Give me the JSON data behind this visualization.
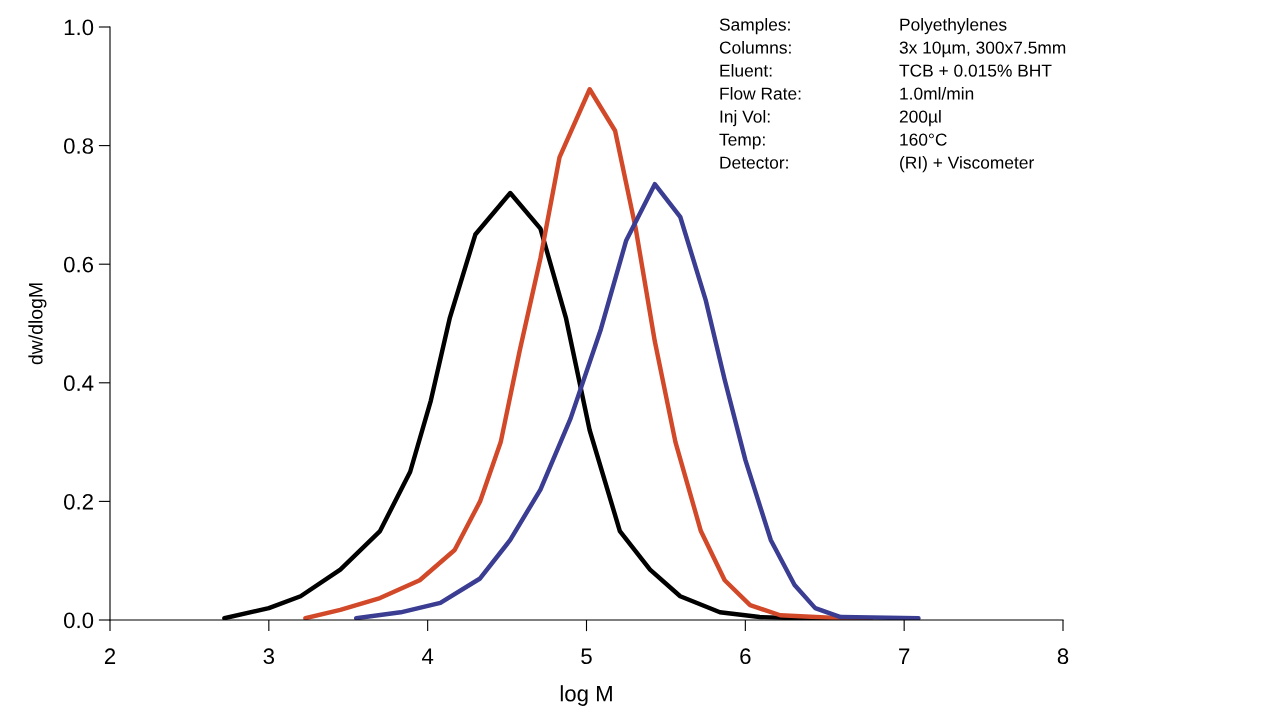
{
  "chart_data": {
    "type": "line",
    "xlabel": "log M",
    "ylabel": "dw/dlogM",
    "xlim": [
      2,
      8
    ],
    "xticks": [
      2,
      3,
      4,
      5,
      6,
      7,
      8
    ],
    "ylim": [
      0,
      1.0
    ],
    "yticks": [
      {
        "value": 0,
        "label": "0.0"
      },
      {
        "value": 0.2,
        "label": "0.2"
      },
      {
        "value": 0.4,
        "label": "0.4"
      },
      {
        "value": 0.6,
        "label": "0.6"
      },
      {
        "value": 0.8,
        "label": "0.8"
      },
      {
        "value": 1.0,
        "label": "1.0"
      }
    ],
    "grid": false,
    "legend": false,
    "line_style": "solid",
    "series": [
      {
        "color": "#000000",
        "x": [
          2.72,
          3.0,
          3.2,
          3.45,
          3.7,
          3.89,
          4.02,
          4.14,
          4.3,
          4.52,
          4.71,
          4.87,
          5.02,
          5.21,
          5.4,
          5.59,
          5.84,
          6.09,
          6.6
        ],
        "values": [
          0.003,
          0.02,
          0.04,
          0.085,
          0.15,
          0.25,
          0.37,
          0.51,
          0.65,
          0.72,
          0.66,
          0.51,
          0.32,
          0.15,
          0.085,
          0.04,
          0.013,
          0.005,
          0.001
        ]
      },
      {
        "color": "#d2492a",
        "x": [
          3.23,
          3.45,
          3.7,
          3.95,
          4.17,
          4.33,
          4.46,
          4.58,
          4.71,
          4.83,
          5.02,
          5.18,
          5.31,
          5.43,
          5.56,
          5.72,
          5.87,
          6.03,
          6.22,
          6.6,
          6.79
        ],
        "values": [
          0.003,
          0.017,
          0.037,
          0.067,
          0.118,
          0.2,
          0.3,
          0.455,
          0.61,
          0.78,
          0.895,
          0.825,
          0.66,
          0.47,
          0.3,
          0.15,
          0.067,
          0.025,
          0.008,
          0.003,
          0.002
        ]
      },
      {
        "color": "#3a3d91",
        "x": [
          3.55,
          3.83,
          4.08,
          4.33,
          4.52,
          4.71,
          4.9,
          5.09,
          5.25,
          5.43,
          5.59,
          5.75,
          5.87,
          6.0,
          6.16,
          6.31,
          6.44,
          6.6,
          7.09
        ],
        "values": [
          0.003,
          0.013,
          0.029,
          0.07,
          0.135,
          0.22,
          0.34,
          0.49,
          0.64,
          0.735,
          0.68,
          0.54,
          0.405,
          0.27,
          0.135,
          0.059,
          0.02,
          0.005,
          0.003
        ]
      }
    ],
    "annotations": [
      "Samples:",
      "Polyethylenes",
      "Columns:",
      "3x 10µm, 300x7.5mm",
      "Eluent:",
      "TCB + 0.015% BHT",
      "Flow Rate:",
      "1.0ml/min",
      "Inj Vol:",
      "200µl",
      "Temp:",
      "160°C",
      "Detector:",
      "(RI) + Viscometer"
    ]
  }
}
